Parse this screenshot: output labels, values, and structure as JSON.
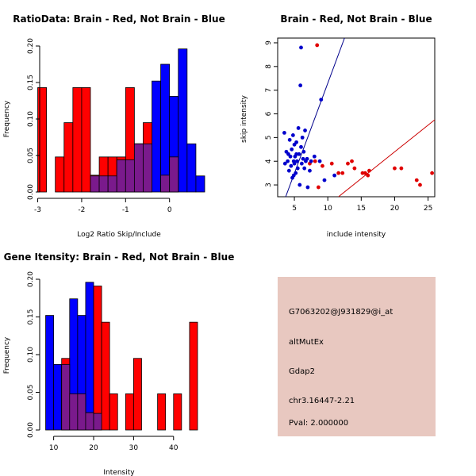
{
  "colors": {
    "red": "#ff0000",
    "blue": "#0000ff",
    "overlap": "#7a1a8c",
    "redLine": "#cc0000",
    "blueLine": "#00008b",
    "redPoint": "#e00000",
    "bluePoint": "#0000cc",
    "infoBg": "#e8c8c0",
    "pval": "#aa0000"
  },
  "info": {
    "probe": "G7063202@J931829@i_at",
    "event": "altMutEx",
    "gene": "Gdap2",
    "location": "chr3.16447-2.21",
    "pval": "Pval: 2.000000"
  },
  "chart_data": [
    {
      "type": "bar",
      "title": "RatioData: Brain - Red, Not Brain - Blue",
      "xlabel": "Log2 Ratio Skip/Include",
      "ylabel": "Frequency",
      "xlim": [
        -3.1,
        0.8
      ],
      "ylim": [
        0,
        0.2
      ],
      "xticks": [
        -3,
        -2,
        -1,
        0
      ],
      "xtick_labels": [
        "-3",
        "-2",
        "-1",
        "0"
      ],
      "yticks": [
        0,
        0.05,
        0.1,
        0.15,
        0.2
      ],
      "ytick_labels": [
        "0.00",
        "0.05",
        "0.10",
        "0.15",
        "0.20"
      ],
      "series": [
        {
          "name": "Brain",
          "color": "red",
          "breaks": [
            -3.0,
            -2.8
          ],
          "values": [
            0.143
          ]
        },
        {
          "name": "Brain",
          "color": "red",
          "breaks": [
            -2.6,
            -2.4,
            -2.2,
            -2.0
          ],
          "values": [
            0.048,
            0.095,
            0.143
          ]
        },
        {
          "name": "Brain",
          "color": "red",
          "breaks": [
            -2.0,
            -1.8,
            -1.6,
            -1.4,
            -1.2,
            -1.0,
            -0.8,
            -0.6,
            -0.4
          ],
          "values": [
            0.143,
            0.023,
            0.048,
            0.048,
            0.048,
            0.143,
            0.066,
            0.095
          ]
        },
        {
          "name": "Brain",
          "color": "red",
          "breaks": [
            -0.2,
            0.0,
            0.2
          ],
          "values": [
            0.023,
            0.048
          ]
        },
        {
          "name": "Not Brain",
          "color": "blue",
          "breaks": [
            -1.8,
            -1.6,
            -1.4,
            -1.2,
            -1.0,
            -0.8,
            -0.6,
            -0.4,
            -0.2,
            0.0,
            0.2,
            0.4,
            0.6,
            0.8
          ],
          "values": [
            0.022,
            0.022,
            0.022,
            0.044,
            0.044,
            0.066,
            0.066,
            0.152,
            0.175,
            0.131,
            0.196,
            0.066,
            0.022,
            0.044
          ]
        }
      ]
    },
    {
      "type": "scatter",
      "title": "Brain - Red, Not Brain - Blue",
      "xlabel": "include intensity",
      "ylabel": "skip intensity",
      "xlim": [
        2.5,
        26
      ],
      "ylim": [
        2.5,
        9.2
      ],
      "xticks": [
        5,
        10,
        15,
        20,
        25
      ],
      "xtick_labels": [
        "5",
        "10",
        "15",
        "20",
        "25"
      ],
      "yticks": [
        3,
        4,
        5,
        6,
        7,
        8,
        9
      ],
      "ytick_labels": [
        "3",
        "4",
        "5",
        "6",
        "7",
        "8",
        "9"
      ],
      "series": [
        {
          "name": "Brain",
          "color": "red",
          "points": [
            [
              8.4,
              8.9
            ],
            [
              7.3,
              3.9
            ],
            [
              8.1,
              4.0
            ],
            [
              8.6,
              2.9
            ],
            [
              9.2,
              3.8
            ],
            [
              10.6,
              3.9
            ],
            [
              11.6,
              3.5
            ],
            [
              12.2,
              3.5
            ],
            [
              13.0,
              3.9
            ],
            [
              13.6,
              4.0
            ],
            [
              14.0,
              3.7
            ],
            [
              15.2,
              3.5
            ],
            [
              15.6,
              3.5
            ],
            [
              16.0,
              3.4
            ],
            [
              16.2,
              3.6
            ],
            [
              20.0,
              3.7
            ],
            [
              21.0,
              3.7
            ],
            [
              23.3,
              3.2
            ],
            [
              23.8,
              3.0
            ],
            [
              25.6,
              3.5
            ]
          ]
        },
        {
          "name": "Not Brain",
          "color": "blue",
          "points": [
            [
              3.5,
              5.2
            ],
            [
              3.6,
              3.9
            ],
            [
              3.8,
              4.4
            ],
            [
              4.0,
              4.0
            ],
            [
              4.1,
              4.3
            ],
            [
              4.2,
              3.6
            ],
            [
              4.3,
              4.9
            ],
            [
              4.4,
              4.2
            ],
            [
              4.5,
              3.8
            ],
            [
              4.6,
              4.5
            ],
            [
              4.7,
              3.3
            ],
            [
              4.8,
              5.1
            ],
            [
              4.9,
              4.0
            ],
            [
              5.0,
              4.7
            ],
            [
              5.0,
              3.9
            ],
            [
              5.1,
              4.2
            ],
            [
              5.2,
              3.5
            ],
            [
              5.3,
              4.8
            ],
            [
              5.4,
              4.0
            ],
            [
              5.5,
              3.7
            ],
            [
              5.6,
              5.4
            ],
            [
              5.7,
              4.3
            ],
            [
              5.8,
              3.0
            ],
            [
              5.9,
              7.2
            ],
            [
              6.0,
              8.8
            ],
            [
              6.0,
              4.6
            ],
            [
              6.1,
              3.9
            ],
            [
              6.2,
              5.0
            ],
            [
              6.3,
              4.1
            ],
            [
              6.4,
              4.4
            ],
            [
              6.5,
              3.7
            ],
            [
              6.6,
              5.3
            ],
            [
              6.7,
              4.0
            ],
            [
              6.9,
              4.1
            ],
            [
              7.0,
              2.9
            ],
            [
              7.3,
              3.6
            ],
            [
              7.5,
              4.0
            ],
            [
              8.0,
              4.2
            ],
            [
              8.8,
              4.0
            ],
            [
              9.0,
              6.6
            ],
            [
              9.5,
              3.2
            ],
            [
              11.0,
              3.4
            ],
            [
              4.9,
              3.4
            ],
            [
              5.3,
              4.3
            ]
          ]
        }
      ],
      "lines": [
        {
          "name": "Not Brain fit",
          "color": "blueLine",
          "from": [
            3.7,
            2.5
          ],
          "to": [
            12.5,
            9.2
          ]
        },
        {
          "name": "Brain fit",
          "color": "redLine",
          "from": [
            11.6,
            2.5
          ],
          "to": [
            26.0,
            5.75
          ]
        }
      ]
    },
    {
      "type": "bar",
      "title": "Gene Itensity: Brain - Red, Not Brain - Blue",
      "xlabel": "Intensity",
      "ylabel": "Frequency",
      "xlim": [
        6.5,
        46
      ],
      "ylim": [
        0,
        0.2
      ],
      "xticks": [
        10,
        20,
        30,
        40
      ],
      "xtick_labels": [
        "10",
        "20",
        "30",
        "40"
      ],
      "yticks": [
        0,
        0.05,
        0.1,
        0.15,
        0.2
      ],
      "ytick_labels": [
        "0.00",
        "0.05",
        "0.10",
        "0.15",
        "0.20"
      ],
      "series": [
        {
          "name": "Brain",
          "color": "red",
          "breaks": [
            12,
            14,
            16,
            18,
            20,
            22,
            24,
            26
          ],
          "values": [
            0.095,
            0.048,
            0.048,
            0.023,
            0.191,
            0.143,
            0.048
          ]
        },
        {
          "name": "Brain",
          "color": "red",
          "breaks": [
            26,
            28,
            30,
            32
          ],
          "values": [
            0.0,
            0.048,
            0.095
          ]
        },
        {
          "name": "Brain",
          "color": "red",
          "breaks": [
            34,
            36,
            38
          ],
          "values": [
            0.0,
            0.048
          ]
        },
        {
          "name": "Brain",
          "color": "red",
          "breaks": [
            38,
            40,
            42,
            44,
            46
          ],
          "values": [
            0.0,
            0.048,
            0.0,
            0.143
          ]
        },
        {
          "name": "Not Brain",
          "color": "blue",
          "breaks": [
            8,
            10,
            12,
            14,
            16,
            18,
            20,
            22
          ],
          "values": [
            0.152,
            0.087,
            0.087,
            0.174,
            0.152,
            0.196,
            0.022,
            0.131
          ]
        }
      ]
    }
  ]
}
